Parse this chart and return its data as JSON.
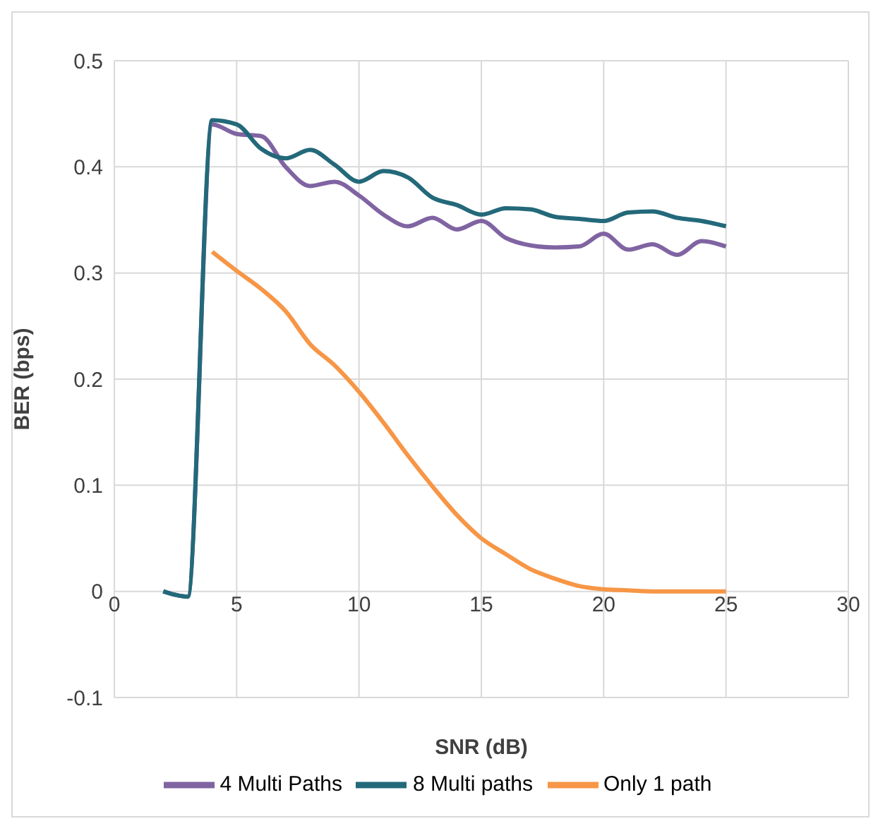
{
  "chart_data": {
    "type": "line",
    "xlabel": "SNR (dB)",
    "ylabel": "BER (bps)",
    "xlim": [
      0,
      30
    ],
    "xticks": [
      0,
      5,
      10,
      15,
      20,
      25,
      30
    ],
    "ylim": [
      -0.1,
      0.5
    ],
    "yticks": [
      -0.1,
      0,
      0.1,
      0.2,
      0.3,
      0.4,
      0.5
    ],
    "grid": true,
    "legend": "bottom",
    "marker": "none",
    "line_style": "solid",
    "series": [
      {
        "name": "Only 1 path",
        "color": "#f79646",
        "x": [
          4,
          5,
          6,
          7,
          8,
          9,
          10,
          11,
          12,
          13,
          14,
          15,
          16,
          17,
          18,
          19,
          20,
          21,
          22,
          23,
          24,
          25
        ],
        "values": [
          0.32,
          0.302,
          0.285,
          0.264,
          0.233,
          0.213,
          0.188,
          0.159,
          0.128,
          0.099,
          0.072,
          0.05,
          0.035,
          0.021,
          0.012,
          0.005,
          0.002,
          0.001,
          0,
          0,
          0,
          0
        ]
      },
      {
        "name": "4 Multi Paths",
        "color": "#8064a2",
        "x": [
          2,
          3,
          4,
          5,
          6,
          7,
          8,
          9,
          10,
          11,
          12,
          13,
          14,
          15,
          16,
          17,
          18,
          19,
          20,
          21,
          22,
          23,
          24,
          25
        ],
        "values": [
          0,
          -0.005,
          0.44,
          0.431,
          0.429,
          0.4,
          0.382,
          0.386,
          0.373,
          0.355,
          0.344,
          0.352,
          0.341,
          0.349,
          0.333,
          0.326,
          0.324,
          0.325,
          0.337,
          0.322,
          0.327,
          0.317,
          0.33,
          0.325
        ]
      },
      {
        "name": "8 Multi paths",
        "color": "#23697a",
        "x": [
          2,
          3,
          4,
          5,
          6,
          7,
          8,
          9,
          10,
          11,
          12,
          13,
          14,
          15,
          16,
          17,
          18,
          19,
          20,
          21,
          22,
          23,
          24,
          25
        ],
        "values": [
          0,
          -0.005,
          0.444,
          0.44,
          0.417,
          0.408,
          0.416,
          0.402,
          0.386,
          0.396,
          0.39,
          0.371,
          0.364,
          0.355,
          0.361,
          0.36,
          0.353,
          0.351,
          0.349,
          0.357,
          0.358,
          0.352,
          0.349,
          0.344
        ]
      }
    ]
  }
}
